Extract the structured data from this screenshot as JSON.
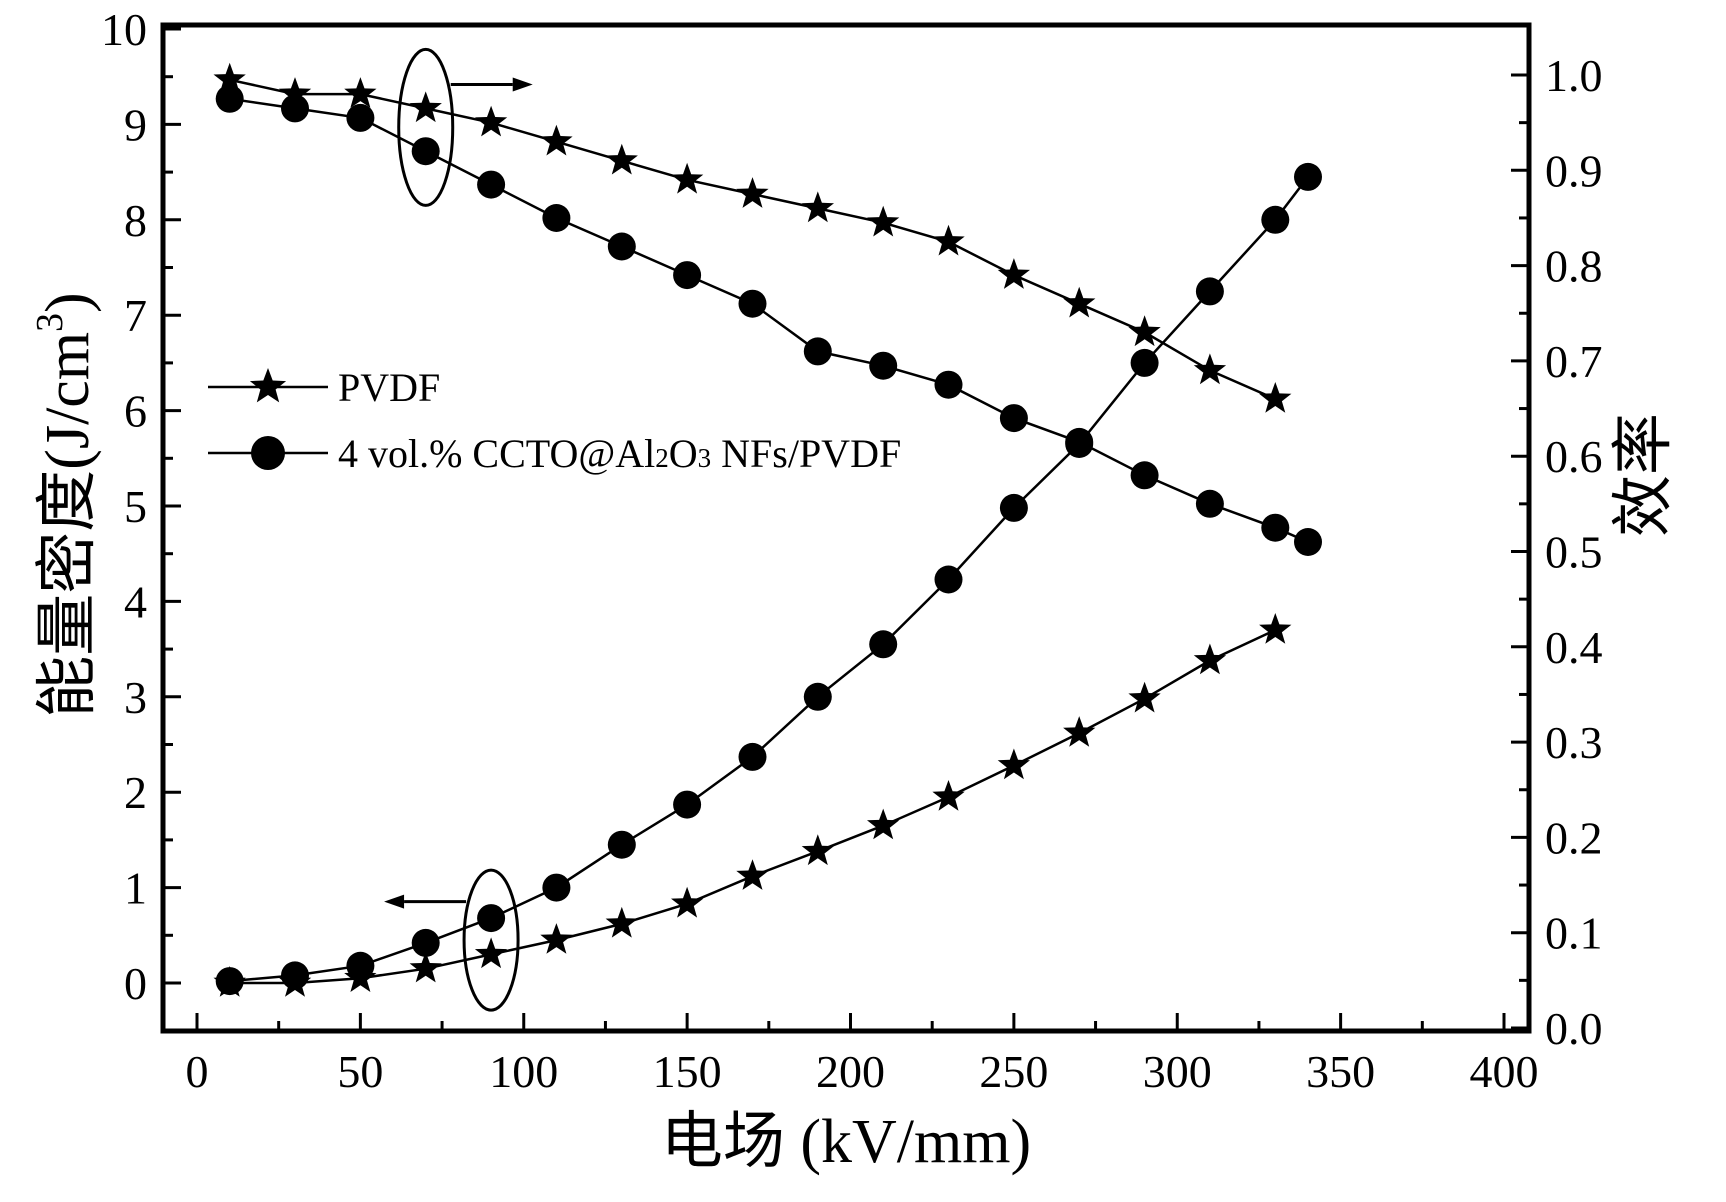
{
  "chart_data": {
    "type": "line",
    "xlabel": "电场  (kV/mm)",
    "ylabel_left": "能量密度(J/cm",
    "ylabel_left_superscript": "3",
    "ylabel_left_close": ")",
    "ylabel_right": "效率",
    "xlim": [
      0,
      400
    ],
    "ylim_left": [
      0,
      10
    ],
    "ylim_right": [
      0.0,
      1.0
    ],
    "x_ticks": [
      "0",
      "50",
      "100",
      "150",
      "200",
      "250",
      "300",
      "350",
      "400"
    ],
    "y_left_ticks": [
      "0",
      "1",
      "2",
      "3",
      "4",
      "5",
      "6",
      "7",
      "8",
      "9",
      "10"
    ],
    "y_right_ticks": [
      "0.0",
      "0.1",
      "0.2",
      "0.3",
      "0.4",
      "0.5",
      "0.6",
      "0.7",
      "0.8",
      "0.9",
      "1.0"
    ],
    "grid": false,
    "legend_position": "left-middle",
    "legend": {
      "pvdf": "PVDF",
      "ccto_prefix": "4 vol.% CCTO@Al",
      "ccto_sub1": "2",
      "ccto_mid": "O",
      "ccto_sub2": "3",
      "ccto_suffix": " NFs/PVDF"
    },
    "series": [
      {
        "name": "PVDF",
        "quantity": "energy density",
        "axis": "left",
        "marker": "star",
        "x": [
          10,
          30,
          50,
          70,
          90,
          110,
          130,
          150,
          170,
          190,
          210,
          230,
          250,
          270,
          290,
          310,
          330
        ],
        "values": [
          0.0,
          0.0,
          0.05,
          0.15,
          0.3,
          0.45,
          0.62,
          0.83,
          1.12,
          1.38,
          1.65,
          1.95,
          2.28,
          2.62,
          2.98,
          3.38,
          3.7
        ]
      },
      {
        "name": "4 vol.% CCTO@Al2O3 NFs/PVDF",
        "quantity": "energy density",
        "axis": "left",
        "marker": "circle",
        "x": [
          10,
          30,
          50,
          70,
          90,
          110,
          130,
          150,
          170,
          190,
          210,
          230,
          250,
          270,
          290,
          310,
          330,
          340
        ],
        "values": [
          0.02,
          0.08,
          0.18,
          0.42,
          0.68,
          1.0,
          1.45,
          1.87,
          2.37,
          3.0,
          3.55,
          4.23,
          4.98,
          5.65,
          6.5,
          7.25,
          8.0,
          8.45
        ]
      },
      {
        "name": "PVDF",
        "quantity": "efficiency",
        "axis": "right",
        "marker": "star",
        "x": [
          10,
          30,
          50,
          70,
          90,
          110,
          130,
          150,
          170,
          190,
          210,
          230,
          250,
          270,
          290,
          310,
          330
        ],
        "values": [
          0.995,
          0.98,
          0.98,
          0.965,
          0.95,
          0.93,
          0.91,
          0.89,
          0.875,
          0.86,
          0.845,
          0.825,
          0.79,
          0.76,
          0.73,
          0.69,
          0.66
        ]
      },
      {
        "name": "4 vol.% CCTO@Al2O3 NFs/PVDF",
        "quantity": "efficiency",
        "axis": "right",
        "marker": "circle",
        "x": [
          10,
          30,
          50,
          70,
          90,
          110,
          130,
          150,
          170,
          190,
          210,
          230,
          250,
          270,
          290,
          310,
          330,
          340
        ],
        "values": [
          0.975,
          0.965,
          0.955,
          0.92,
          0.885,
          0.85,
          0.82,
          0.79,
          0.76,
          0.71,
          0.695,
          0.675,
          0.64,
          0.615,
          0.58,
          0.55,
          0.525,
          0.51
        ]
      }
    ],
    "annotations": [
      {
        "type": "ellipse-with-arrow",
        "encloses_x": 70,
        "encloses_series": "efficiency",
        "arrow_direction": "right",
        "meaning": "refers to right axis"
      },
      {
        "type": "ellipse-with-arrow",
        "encloses_x": 90,
        "encloses_series": "energy density",
        "arrow_direction": "left",
        "meaning": "refers to left axis"
      }
    ]
  }
}
